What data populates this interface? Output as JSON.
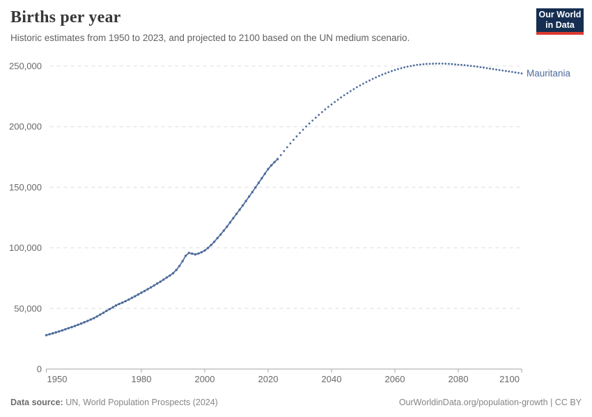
{
  "header": {
    "title": "Births per year",
    "subtitle": "Historic estimates from 1950 to 2023, and projected to 2100 based on the UN medium scenario.",
    "logo": {
      "line1": "Our World",
      "line2": "in Data",
      "bg": "#152e51",
      "accent": "#dc3a30"
    }
  },
  "chart_data": {
    "type": "line",
    "title": "Births per year",
    "entity": "Mauritania",
    "color": "#4c6a9c",
    "grid": "horizontal-dashed",
    "legend_position": "right-of-line-end",
    "xlabel": "",
    "ylabel": "",
    "xlim": [
      1950,
      2100
    ],
    "ylim": [
      0,
      250000
    ],
    "x_ticks": [
      1950,
      1980,
      2000,
      2020,
      2040,
      2060,
      2080,
      2100
    ],
    "y_ticks": [
      0,
      50000,
      100000,
      150000,
      200000,
      250000
    ],
    "y_tick_labels": [
      "0",
      "50,000",
      "100,000",
      "150,000",
      "200,000",
      "250,000"
    ],
    "series": [
      {
        "name": "Mauritania (historic estimates)",
        "style": "solid",
        "start_year": 1950,
        "end_year": 2023,
        "values": [
          28000,
          28700,
          29400,
          30200,
          31000,
          31900,
          32800,
          33700,
          34600,
          35500,
          36500,
          37500,
          38600,
          39700,
          40800,
          42000,
          43400,
          44900,
          46400,
          48000,
          49500,
          51000,
          52500,
          53700,
          54800,
          56000,
          57300,
          58700,
          60100,
          61500,
          63000,
          64400,
          65900,
          67400,
          68900,
          70500,
          72100,
          73800,
          75500,
          77200,
          79000,
          81700,
          85000,
          89000,
          93500,
          95800,
          95200,
          94600,
          95300,
          96400,
          97800,
          99900,
          102300,
          105000,
          108000,
          111000,
          114200,
          117500,
          121000,
          124500,
          128000,
          131500,
          135000,
          138600,
          142300,
          146000,
          149800,
          153600,
          157400,
          161200,
          165000,
          168000,
          170700,
          173200
        ]
      },
      {
        "name": "Mauritania (UN medium projection)",
        "style": "dotted",
        "start_year": 2024,
        "end_year": 2100,
        "values": [
          176500,
          179800,
          183000,
          186100,
          189100,
          192000,
          194800,
          197500,
          200100,
          202600,
          205000,
          207400,
          209700,
          212000,
          214200,
          216300,
          218300,
          220300,
          222200,
          224100,
          225900,
          227600,
          229300,
          230900,
          232500,
          234000,
          235400,
          236800,
          238100,
          239400,
          240600,
          241800,
          242900,
          243900,
          244900,
          245800,
          246700,
          247500,
          248200,
          248900,
          249500,
          250000,
          250500,
          250900,
          251200,
          251500,
          251700,
          251800,
          251900,
          252000,
          252000,
          252000,
          251900,
          251800,
          251600,
          251400,
          251100,
          250900,
          250700,
          250400,
          250100,
          249800,
          249500,
          249100,
          248700,
          248300,
          247900,
          247500,
          247100,
          246700,
          246300,
          245900,
          245500,
          245100,
          244700,
          244300,
          243900
        ]
      }
    ]
  },
  "footer": {
    "source_label": "Data source:",
    "source": "UN, World Population Prospects (2024)",
    "link": "OurWorldinData.org/population-growth | CC BY"
  }
}
